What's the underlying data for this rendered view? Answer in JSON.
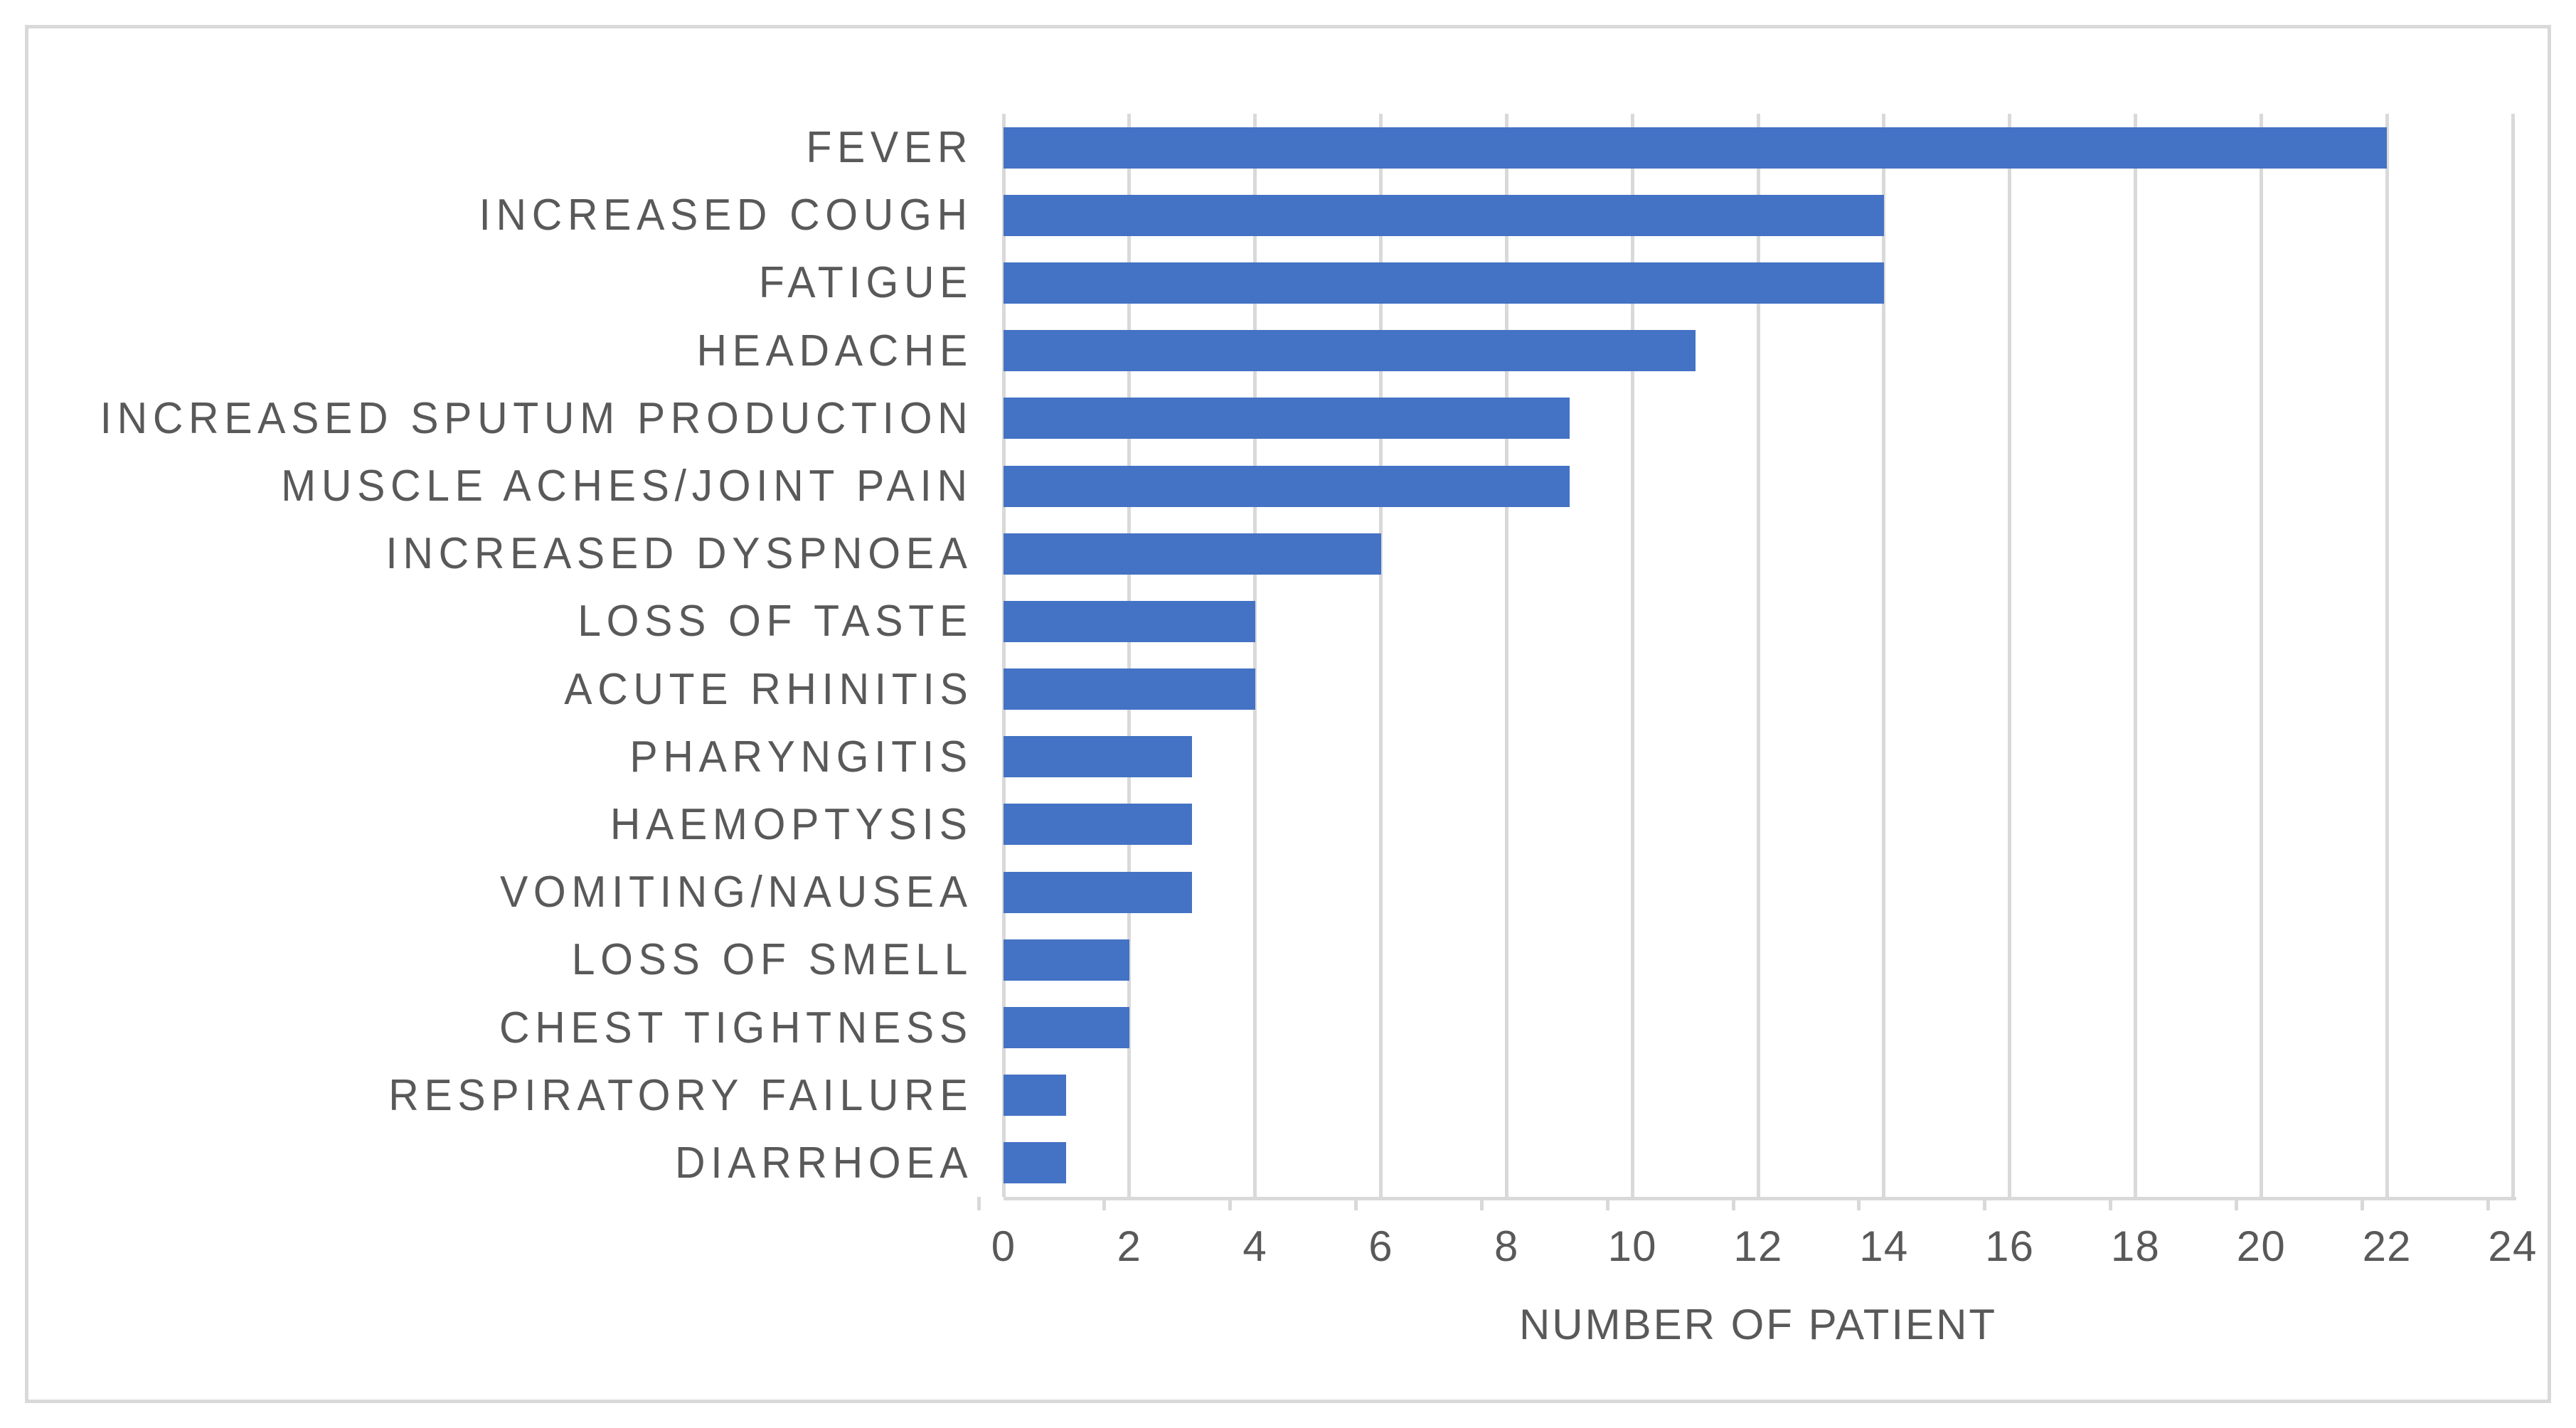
{
  "chart_data": {
    "type": "bar",
    "orientation": "horizontal",
    "title": "",
    "xlabel": "NUMBER OF PATIENT",
    "ylabel": "",
    "categories": [
      "FEVER",
      "INCREASED COUGH",
      "FATIGUE",
      "HEADACHE",
      "INCREASED SPUTUM PRODUCTION",
      "MUSCLE ACHES/JOINT PAIN",
      "INCREASED DYSPNOEA",
      "LOSS OF TASTE",
      "ACUTE RHINITIS",
      "PHARYNGITIS",
      "HAEMOPTYSIS",
      "VOMITING/NAUSEA",
      "LOSS OF SMELL",
      "CHEST TIGHTNESS",
      "RESPIRATORY FAILURE",
      "DIARRHOEA"
    ],
    "values": [
      22,
      14,
      14,
      11,
      9,
      9,
      6,
      4,
      4,
      3,
      3,
      3,
      2,
      2,
      1,
      1
    ],
    "xlim": [
      0,
      24
    ],
    "xticks": [
      0,
      2,
      4,
      6,
      8,
      10,
      12,
      14,
      16,
      18,
      20,
      22,
      24
    ],
    "grid": "vertical-only",
    "legend": "none",
    "colors": {
      "bar": "#4472C4",
      "gridline": "#D9D9D9",
      "axis_text": "#595959",
      "frame_border": "#D9D9D9",
      "background": "#FFFFFF"
    }
  }
}
